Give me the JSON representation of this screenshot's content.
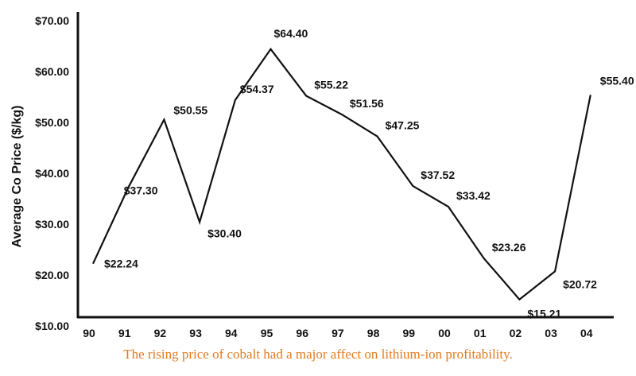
{
  "colors": {
    "line": "#111111",
    "axis": "#111111",
    "caption": "#e07b1f"
  },
  "chart_data": {
    "type": "line",
    "title": "",
    "xlabel": "",
    "ylabel": "Average Co Price ($/kg)",
    "categories": [
      "90",
      "91",
      "92",
      "93",
      "94",
      "95",
      "96",
      "97",
      "98",
      "99",
      "00",
      "01",
      "02",
      "03",
      "04"
    ],
    "y_ticks": [
      "$10.00",
      "$20.00",
      "$30.00",
      "$40.00",
      "$50.00",
      "$60.00",
      "$70.00"
    ],
    "ylim": [
      10,
      70
    ],
    "grid": false,
    "series": [
      {
        "values": [
          22.24,
          37.3,
          50.55,
          30.4,
          54.37,
          64.4,
          55.22,
          51.56,
          47.25,
          37.52,
          33.42,
          23.26,
          15.21,
          20.72,
          55.4
        ],
        "labels": [
          "$22.24",
          "$37.30",
          "$50.55",
          "$30.40",
          "$54.37",
          "$64.40",
          "$55.22",
          "$51.56",
          "$47.25",
          "$37.52",
          "$33.42",
          "$23.26",
          "$15.21",
          "$20.72",
          "$55.40"
        ]
      }
    ]
  },
  "caption": "The rising price of cobalt had a major affect on lithium-ion profitability."
}
